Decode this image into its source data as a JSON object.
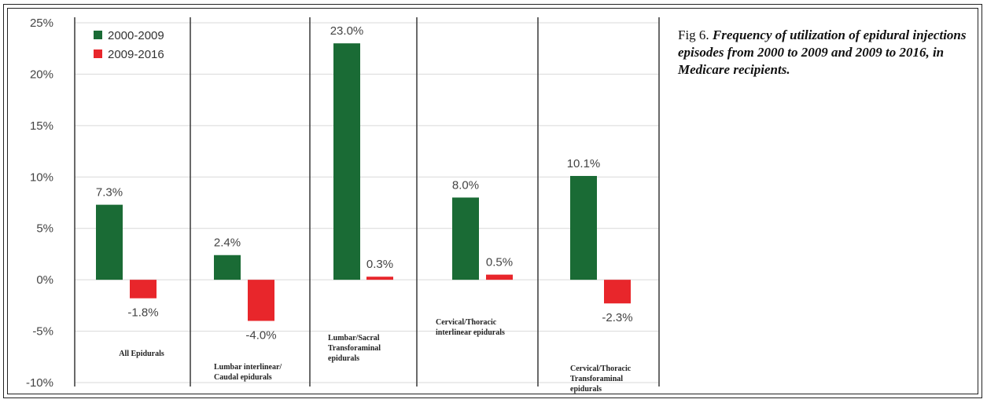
{
  "caption": {
    "fig_label": "Fig 6. ",
    "description": "Frequency of utilization of epidural injections episodes from 2000 to 2009 and 2009 to 2016, in Medicare recipients."
  },
  "chart_data": {
    "type": "bar",
    "title": "",
    "xlabel": "",
    "ylabel": "",
    "ylim": [
      -10,
      25
    ],
    "yticks": [
      25,
      20,
      15,
      10,
      5,
      0,
      -5,
      -10
    ],
    "ytick_labels": [
      "25%",
      "20%",
      "15%",
      "10%",
      "5%",
      "0%",
      "-5%",
      "-10%"
    ],
    "grid": true,
    "legend_position": "top-left",
    "categories": [
      [
        "All Epidurals"
      ],
      [
        "Lumbar interlinear/",
        "Caudal epidurals"
      ],
      [
        "Lumbar/Sacral",
        "Transforaminal",
        "epidurals"
      ],
      [
        "Cervical/Thoracic",
        "interlinear epidurals"
      ],
      [
        "Cervical/Thoracic",
        "Transforaminal",
        "epidurals"
      ]
    ],
    "series": [
      {
        "name": "2000-2009",
        "color": "#1a6b35",
        "values": [
          7.3,
          2.4,
          23.0,
          8.0,
          10.1
        ],
        "labels": [
          "7.3%",
          "2.4%",
          "23.0%",
          "8.0%",
          "10.1%"
        ]
      },
      {
        "name": "2009-2016",
        "color": "#e8262b",
        "values": [
          -1.8,
          -4.0,
          0.3,
          0.5,
          -2.3
        ],
        "labels": [
          "-1.8%",
          "-4.0%",
          "0.3%",
          "0.5%",
          "-2.3%"
        ]
      }
    ]
  }
}
